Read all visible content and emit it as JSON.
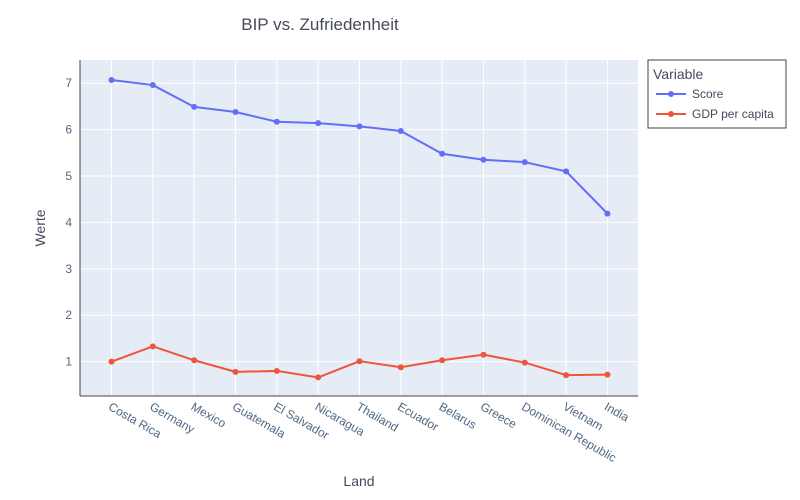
{
  "chart_data": {
    "type": "line",
    "title": "BIP vs. Zufriedenheit",
    "xlabel": "Land",
    "ylabel": "Werte",
    "categories": [
      "Costa Rica",
      "Germany",
      "Mexico",
      "Guatemala",
      "El Salvador",
      "Nicaragua",
      "Thailand",
      "Ecuador",
      "Belarus",
      "Greece",
      "Dominican Republic",
      "Vietnam",
      "India"
    ],
    "series": [
      {
        "name": "Score",
        "color": "#636efa",
        "values": [
          7.07,
          6.96,
          6.49,
          6.38,
          6.17,
          6.14,
          6.07,
          5.97,
          5.48,
          5.35,
          5.3,
          5.1,
          4.19
        ]
      },
      {
        "name": "GDP per capita",
        "color": "#ef553b",
        "values": [
          1.0,
          1.33,
          1.03,
          0.78,
          0.8,
          0.66,
          1.01,
          0.88,
          1.03,
          1.15,
          0.98,
          0.71,
          0.72
        ]
      }
    ],
    "ylim": [
      0.26,
      7.5
    ],
    "yticks": [
      1,
      2,
      3,
      4,
      5,
      6,
      7
    ],
    "grid": true,
    "legend": {
      "title": "Variable",
      "position": "top-right"
    },
    "plot_bg": "#e5ecf6"
  }
}
